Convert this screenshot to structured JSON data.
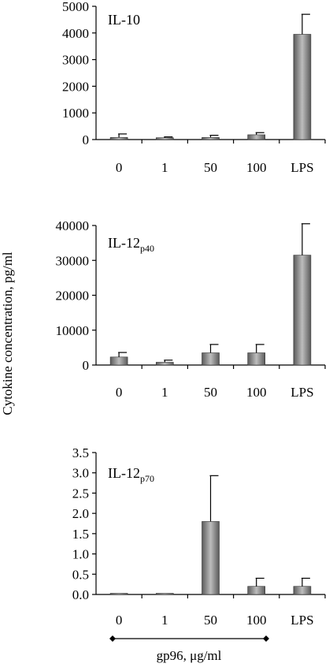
{
  "ylabel": "Cytokine concentration, pg/ml",
  "xnote": {
    "label_main": "gp96, ",
    "label_unit": "μg/ml"
  },
  "colors": {
    "bar_dark": "#5a5a5a",
    "bar_light": "#bdbdbd",
    "axis": "#000000"
  },
  "chart_data": [
    {
      "type": "bar",
      "title": "IL-10",
      "title_sub": "",
      "categories": [
        "0",
        "1",
        "50",
        "100",
        "LPS"
      ],
      "values": [
        80,
        70,
        80,
        180,
        3950
      ],
      "errors": [
        130,
        30,
        80,
        80,
        750
      ],
      "ylim": [
        0,
        5000
      ],
      "yticks": [
        "0",
        "1000",
        "2000",
        "3000",
        "4000",
        "5000"
      ],
      "ytick_values": [
        0,
        1000,
        2000,
        3000,
        4000,
        5000
      ]
    },
    {
      "type": "bar",
      "title": "IL-12",
      "title_sub": "p40",
      "categories": [
        "0",
        "1",
        "50",
        "100",
        "LPS"
      ],
      "values": [
        2300,
        800,
        3500,
        3500,
        31500
      ],
      "errors": [
        1300,
        600,
        2400,
        2400,
        9000
      ],
      "ylim": [
        0,
        40000
      ],
      "yticks": [
        "0",
        "10000",
        "20000",
        "30000",
        "40000"
      ],
      "ytick_values": [
        0,
        10000,
        20000,
        30000,
        40000
      ]
    },
    {
      "type": "bar",
      "title": "IL-12",
      "title_sub": "p70",
      "categories": [
        "0",
        "1",
        "50",
        "100",
        "LPS"
      ],
      "values": [
        0,
        0,
        1.8,
        0.2,
        0.2
      ],
      "errors": [
        0,
        0,
        1.13,
        0.2,
        0.2
      ],
      "ylim": [
        0,
        3.5
      ],
      "yticks": [
        "0.0",
        "0.5",
        "1.0",
        "1.5",
        "2.0",
        "2.5",
        "3.0",
        "3.5"
      ],
      "ytick_values": [
        0,
        0.5,
        1.0,
        1.5,
        2.0,
        2.5,
        3.0,
        3.5
      ]
    }
  ]
}
